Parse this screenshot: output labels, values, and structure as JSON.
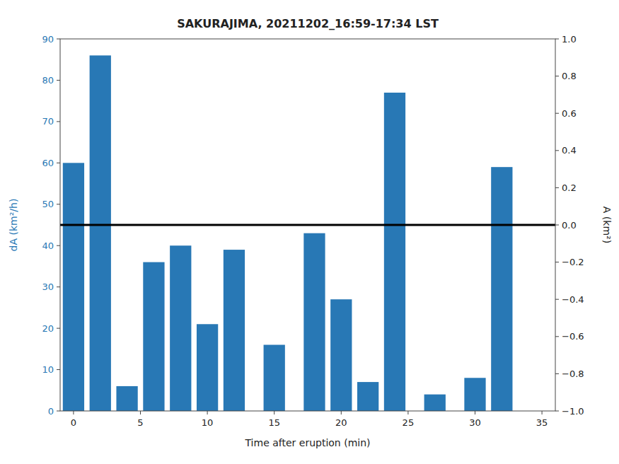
{
  "chart_data": {
    "type": "bar",
    "title": "SAKURAJIMA, 20211202_16:59-17:34 LST",
    "xlabel": "Time after eruption (min)",
    "ylabel": "dA (km²/h)",
    "y2label": "A (km²)",
    "x": [
      0,
      2,
      4,
      6,
      8,
      10,
      12,
      15,
      18,
      20,
      22,
      24,
      27,
      30,
      32
    ],
    "values": [
      60,
      86,
      6,
      36,
      40,
      21,
      39,
      16,
      43,
      27,
      7,
      77,
      4,
      8,
      59
    ],
    "color": "#2878b5",
    "reference_line": {
      "y": 45,
      "color": "black"
    },
    "xlim": [
      -1,
      36
    ],
    "xticks": [
      0,
      5,
      10,
      15,
      20,
      25,
      30,
      35
    ],
    "ylim": [
      0,
      90
    ],
    "yticks": [
      0,
      10,
      20,
      30,
      40,
      50,
      60,
      70,
      80,
      90
    ],
    "y2lim": [
      -1,
      1
    ],
    "y2ticks": [
      {
        "value": -1.0,
        "label": "−1.0"
      },
      {
        "value": -0.8,
        "label": "−0.8"
      },
      {
        "value": -0.6,
        "label": "−0.6"
      },
      {
        "value": -0.4,
        "label": "−0.4"
      },
      {
        "value": -0.2,
        "label": "−0.2"
      },
      {
        "value": 0.0,
        "label": "0.0"
      },
      {
        "value": 0.2,
        "label": "0.2"
      },
      {
        "value": 0.4,
        "label": "0.4"
      },
      {
        "value": 0.6,
        "label": "0.6"
      },
      {
        "value": 0.8,
        "label": "0.8"
      },
      {
        "value": 1.0,
        "label": "1.0"
      }
    ],
    "grid": false
  }
}
